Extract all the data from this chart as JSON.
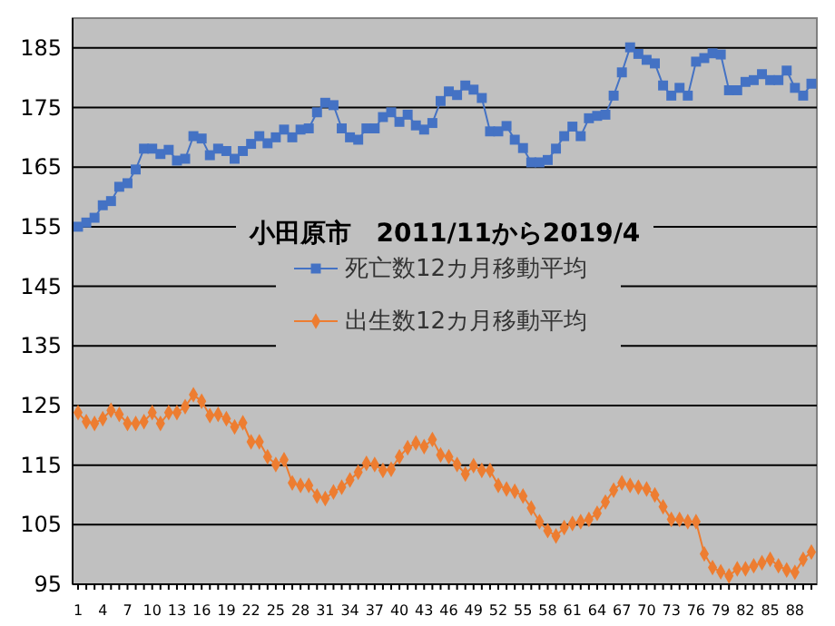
{
  "chart_data": {
    "type": "line",
    "title": "小田原市　2011/11から2019/4",
    "categories": [
      "1",
      null,
      null,
      "4",
      null,
      null,
      "7",
      null,
      null,
      "10",
      null,
      null,
      "13",
      null,
      null,
      "16",
      null,
      null,
      "19",
      null,
      null,
      "22",
      null,
      null,
      "25",
      null,
      null,
      "28",
      null,
      null,
      "31",
      null,
      null,
      "34",
      null,
      null,
      "37",
      null,
      null,
      "40",
      null,
      null,
      "43",
      null,
      null,
      "46",
      null,
      null,
      "49",
      null,
      null,
      "52",
      null,
      null,
      "55",
      null,
      null,
      "58",
      null,
      null,
      "61",
      null,
      null,
      "64",
      null,
      null,
      "67",
      null,
      null,
      "70",
      null,
      null,
      "73",
      null,
      null,
      "76",
      null,
      null,
      "79",
      null,
      null,
      "82",
      null,
      null,
      "85",
      null,
      null,
      "88",
      null,
      null
    ],
    "series": [
      {
        "name": "死亡数12カ月移動平均",
        "color": "#4472c4",
        "marker": "square",
        "values": [
          155.0,
          155.7,
          156.5,
          158.6,
          159.3,
          161.7,
          162.3,
          164.6,
          168.1,
          168.1,
          167.2,
          167.9,
          166.1,
          166.4,
          170.2,
          169.8,
          167.0,
          168.1,
          167.7,
          166.4,
          167.7,
          168.9,
          170.2,
          169.0,
          170.0,
          171.3,
          170.0,
          171.3,
          171.5,
          174.2,
          175.8,
          175.4,
          171.5,
          170.0,
          169.6,
          171.5,
          171.5,
          173.4,
          174.2,
          172.6,
          173.8,
          172.0,
          171.3,
          172.4,
          176.1,
          177.7,
          177.1,
          178.7,
          178.0,
          176.6,
          171.0,
          171.0,
          171.9,
          169.6,
          168.2,
          165.8,
          165.8,
          166.2,
          168.1,
          170.2,
          171.8,
          170.2,
          173.2,
          173.6,
          173.8,
          177.0,
          180.9,
          185.1,
          184.0,
          183.0,
          182.4,
          178.7,
          177.0,
          178.3,
          177.0,
          182.7,
          183.3,
          184.1,
          183.9,
          177.9,
          177.9,
          179.3,
          179.6,
          180.6,
          179.6,
          179.6,
          181.2,
          178.3,
          177.0,
          179.0
        ]
      },
      {
        "name": "出生数12カ月移動平均",
        "color": "#ed7d31",
        "marker": "diamond",
        "values": [
          123.8,
          122.3,
          122.0,
          122.8,
          124.2,
          123.5,
          122.0,
          122.0,
          122.3,
          123.8,
          122.0,
          123.8,
          123.8,
          124.8,
          126.8,
          125.7,
          123.3,
          123.5,
          122.8,
          121.4,
          122.1,
          118.9,
          118.9,
          116.4,
          115.1,
          115.9,
          112.0,
          111.6,
          111.6,
          109.8,
          109.4,
          110.5,
          111.3,
          112.5,
          113.8,
          115.3,
          115.1,
          114.1,
          114.3,
          116.4,
          117.9,
          118.7,
          118.1,
          119.3,
          116.7,
          116.4,
          115.1,
          113.5,
          114.9,
          114.1,
          114.1,
          111.6,
          111.0,
          110.6,
          109.8,
          107.8,
          105.5,
          104.0,
          103.1,
          104.5,
          105.2,
          105.5,
          105.9,
          106.9,
          108.8,
          110.8,
          112.0,
          111.6,
          111.3,
          111.0,
          110.0,
          108.0,
          105.9,
          105.9,
          105.5,
          105.5,
          100.1,
          97.8,
          97.1,
          96.4,
          97.6,
          97.6,
          98.1,
          98.6,
          99.2,
          98.1,
          97.4,
          97.0,
          99.2,
          100.4
        ]
      }
    ],
    "ylim": [
      95,
      190
    ],
    "yticks": [
      95,
      105,
      115,
      125,
      135,
      145,
      155,
      165,
      175,
      185
    ],
    "grid": "y",
    "legend": "center"
  }
}
